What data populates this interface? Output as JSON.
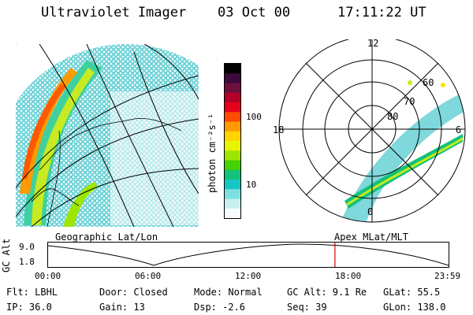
{
  "header": {
    "instrument": "Ultraviolet Imager",
    "date": "03 Oct 00",
    "time": "17:11:22 UT"
  },
  "left_panel": {
    "caption": "Geographic Lat/Lon"
  },
  "right_panel": {
    "caption": "Apex MLat/MLT",
    "mlt_labels": [
      "12",
      "18",
      "6",
      "0"
    ],
    "lat_labels": [
      "60",
      "70",
      "80"
    ]
  },
  "colorbar": {
    "unit_label": "photon cm⁻²s⁻¹",
    "tick_labels": [
      "100",
      "10"
    ],
    "colors": [
      "#000000",
      "#3b0a3a",
      "#6d0f3d",
      "#b3002a",
      "#e5001c",
      "#ff4a00",
      "#ff9a00",
      "#ffd400",
      "#e8f400",
      "#9ee600",
      "#46d200",
      "#12c27a",
      "#17c6c3",
      "#7edfe0",
      "#c7eff0",
      "#f6fbfb"
    ]
  },
  "altitude_plot": {
    "ylabel": "GC Alt",
    "y_ticks": [
      "9.0",
      "1.8"
    ],
    "x_ticks": [
      "00:00",
      "06:00",
      "12:00",
      "18:00",
      "23:59"
    ],
    "current_time_marker_hours": 17.19,
    "marker_color": "#cc0000"
  },
  "footer": {
    "filter": "Flt: LBHL",
    "ip": "IP: 36.0",
    "door": "Door: Closed",
    "gain": "Gain: 13",
    "mode": "Mode: Normal",
    "dsp": "Dsp:   -2.6",
    "gc_alt": "GC Alt: 9.1 Re",
    "seq": "Seq: 39",
    "glat": "GLat:  55.5",
    "glon": "GLon: 138.0"
  }
}
